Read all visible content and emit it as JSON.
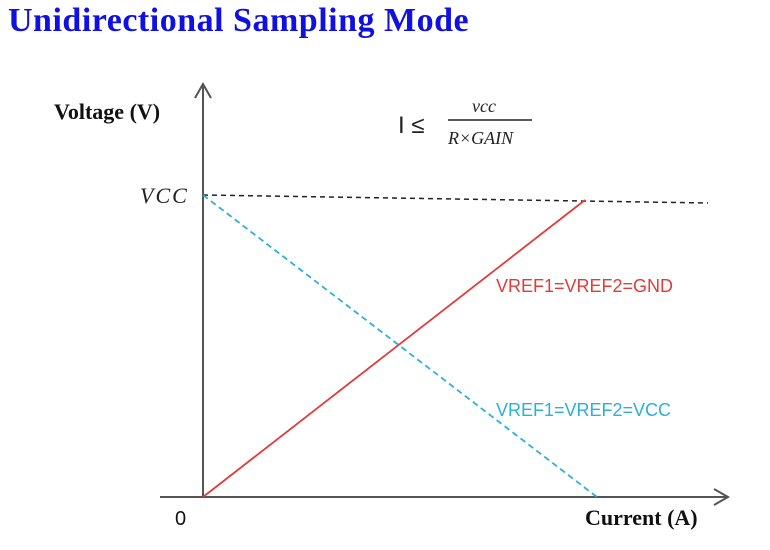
{
  "title": "Unidirectional Sampling Mode",
  "y_axis_label": "Voltage (V)",
  "x_axis_label": "Current (A)",
  "origin_label": "0",
  "vcc_label": "VCC",
  "formula": {
    "lhs": "I ≤",
    "numerator": "vcc",
    "denominator": "R×GAIN"
  },
  "lines": [
    {
      "label": "VREF1=VREF2=GND",
      "color": "#e23b3b",
      "style": "solid"
    },
    {
      "label": "VREF1=VREF2=VCC",
      "color": "#2bb0d8",
      "style": "dashed"
    }
  ]
}
